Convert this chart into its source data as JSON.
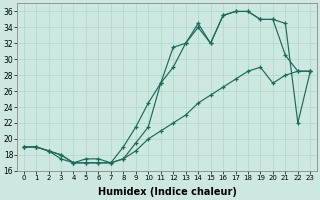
{
  "xlabel": "Humidex (Indice chaleur)",
  "xlim": [
    -0.5,
    23.5
  ],
  "ylim": [
    16,
    37
  ],
  "xticks": [
    0,
    1,
    2,
    3,
    4,
    5,
    6,
    7,
    8,
    9,
    10,
    11,
    12,
    13,
    14,
    15,
    16,
    17,
    18,
    19,
    20,
    21,
    22,
    23
  ],
  "yticks": [
    16,
    18,
    20,
    22,
    24,
    26,
    28,
    30,
    32,
    34,
    36
  ],
  "bg_color": "#cce8e0",
  "line_color": "#1a6b5a",
  "grid_color": "#b0d4c8",
  "line1_y": [
    19.0,
    19.0,
    18.5,
    17.5,
    17.0,
    17.0,
    17.0,
    17.0,
    17.5,
    19.5,
    21.5,
    27.0,
    29.0,
    32.0,
    34.5,
    32.0,
    35.5,
    36.0,
    36.0,
    35.0,
    35.0,
    30.5,
    28.5,
    28.5
  ],
  "line2_y": [
    19.0,
    19.0,
    18.5,
    18.0,
    17.0,
    17.5,
    17.5,
    17.0,
    19.0,
    21.5,
    24.5,
    27.0,
    31.5,
    32.0,
    34.0,
    32.0,
    35.5,
    36.0,
    36.0,
    35.0,
    35.0,
    34.5,
    22.0,
    28.5
  ],
  "line3_y": [
    19.0,
    19.0,
    18.5,
    18.0,
    17.0,
    17.0,
    17.0,
    17.0,
    17.5,
    18.5,
    20.0,
    21.0,
    22.0,
    23.0,
    24.5,
    25.5,
    26.5,
    27.5,
    28.5,
    29.0,
    27.0,
    28.0,
    28.5,
    28.5
  ]
}
